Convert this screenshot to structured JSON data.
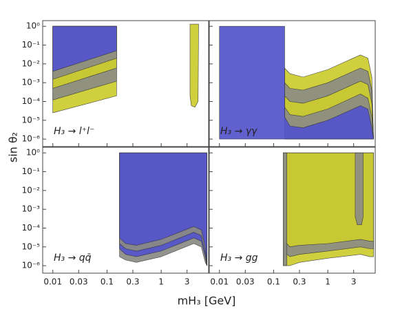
{
  "chart_data": {
    "type": "contour",
    "xlabel": "mH₃ [GeV]",
    "ylabel": "sin θ₂",
    "log_x": true,
    "log_y": true,
    "xlim": [
      0.0065,
      7.5
    ],
    "ylim": [
      4e-07,
      2
    ],
    "xticks": [
      0.01,
      0.03,
      0.1,
      0.3,
      1,
      3
    ],
    "yticks": [
      {
        "value": 1,
        "label": "10⁰"
      },
      {
        "value": 0.1,
        "label": "10⁻¹"
      },
      {
        "value": 0.01,
        "label": "10⁻²"
      },
      {
        "value": 0.001,
        "label": "10⁻³"
      },
      {
        "value": 0.0001,
        "label": "10⁻⁴"
      },
      {
        "value": 1e-05,
        "label": "10⁻⁵"
      },
      {
        "value": 1e-06,
        "label": "10⁻⁶"
      }
    ],
    "panels": [
      {
        "label": "H₃ → l⁺l⁻",
        "regions": [
          {
            "color": "#cdcd2e",
            "x": [
              0.01,
              0.15,
              0.15,
              0.01
            ],
            "values": [
              2.5e-05,
              0.0002,
              1,
              1
            ]
          },
          {
            "color": "#8c8c86",
            "x": [
              0.01,
              0.15,
              0.15,
              0.01
            ],
            "values": [
              0.00012,
              0.0012,
              1,
              1
            ]
          },
          {
            "color": "#cdcd2e",
            "x": [
              0.01,
              0.15,
              0.15,
              0.01
            ],
            "values": [
              0.0005,
              0.006,
              1,
              1
            ]
          },
          {
            "color": "#8c8c86",
            "x": [
              0.01,
              0.15,
              0.15,
              0.01
            ],
            "values": [
              0.0015,
              0.02,
              1,
              1
            ]
          },
          {
            "color": "#5353cc",
            "x": [
              0.01,
              0.15,
              0.15,
              0.01
            ],
            "values": [
              0.004,
              0.05,
              1,
              1
            ]
          },
          {
            "color": "#cdcd2e",
            "x": [
              3.4,
              3.4,
              3.6,
              4.2,
              4.8,
              4.9
            ],
            "values": [
              1.3,
              0.0002,
              6e-05,
              5e-05,
              0.0001,
              1.3
            ]
          }
        ]
      },
      {
        "label": "H₃ → γγ",
        "regions": [
          {
            "color": "#cdcd2e",
            "x": [
              0.16,
              0.16,
              0.2,
              0.35,
              1,
              4,
              5.5,
              6.5,
              7
            ],
            "values": [
              1e-06,
              0.006,
              0.003,
              0.002,
              0.005,
              0.03,
              0.02,
              0.002,
              1e-06
            ]
          },
          {
            "color": "#8c8c86",
            "x": [
              0.16,
              0.16,
              0.2,
              0.35,
              1,
              4,
              5.5,
              6.5,
              7
            ],
            "values": [
              1e-06,
              0.001,
              0.0005,
              0.0004,
              0.001,
              0.006,
              0.004,
              0.0004,
              1e-06
            ]
          },
          {
            "color": "#cdcd2e",
            "x": [
              0.16,
              0.16,
              0.2,
              0.35,
              1,
              4,
              5.5,
              6.5,
              7
            ],
            "values": [
              1e-06,
              0.0002,
              0.0001,
              8e-05,
              0.0002,
              0.0012,
              0.0008,
              8e-05,
              1e-06
            ]
          },
          {
            "color": "#8c8c86",
            "x": [
              0.16,
              0.16,
              0.2,
              0.35,
              1,
              4,
              5.5,
              6.5,
              7
            ],
            "values": [
              1e-06,
              5e-05,
              2e-05,
              1.6e-05,
              4e-05,
              0.00025,
              0.00015,
              1.5e-05,
              1e-06
            ]
          },
          {
            "color": "#5353cc",
            "x": [
              0.01,
              0.01,
              0.16,
              0.16,
              0.2,
              0.35,
              1,
              4,
              5.5,
              6.5,
              7
            ],
            "values": [
              1e-06,
              1,
              1,
              1.5e-05,
              5e-06,
              4e-06,
              1e-05,
              6e-05,
              4e-05,
              4e-06,
              1e-06
            ]
          }
        ]
      },
      {
        "label": "H₃ → qq̄",
        "regions": [
          {
            "color": "#8c8c86",
            "x": [
              0.17,
              0.22,
              0.35,
              1,
              4,
              5.5,
              6.5,
              7,
              7,
              0.17
            ],
            "values": [
              3e-06,
              2e-06,
              1.5e-06,
              3e-06,
              1.5e-05,
              1e-05,
              1.5e-06,
              1e-06,
              1,
              1
            ]
          },
          {
            "color": "#5353cc",
            "x": [
              0.17,
              0.22,
              0.35,
              1,
              4,
              5.5,
              6.5,
              7,
              7,
              0.17
            ],
            "values": [
              8e-06,
              4e-06,
              3e-06,
              6e-06,
              3e-05,
              2e-05,
              3e-06,
              1e-06,
              1,
              1
            ]
          },
          {
            "color": "#8c8c86",
            "x": [
              0.17,
              0.22,
              0.35,
              1,
              4,
              5.5,
              6.5,
              7,
              7,
              0.17
            ],
            "values": [
              1.5e-05,
              8e-06,
              6e-06,
              1.2e-05,
              6e-05,
              4e-05,
              5e-06,
              1e-06,
              1,
              1
            ]
          },
          {
            "color": "#5353cc",
            "x": [
              0.17,
              0.22,
              0.35,
              1,
              4,
              5.5,
              6.5,
              7,
              7,
              0.17
            ],
            "values": [
              3e-05,
              1.5e-05,
              1.2e-05,
              2.5e-05,
              0.00012,
              8e-05,
              1e-05,
              1e-06,
              1,
              1
            ]
          }
        ]
      },
      {
        "label": "H₃ → gg",
        "regions": [
          {
            "color": "#cdcd2e",
            "x": [
              0.15,
              0.16,
              0.2,
              0.3,
              1,
              4,
              6,
              7,
              7,
              0.15
            ],
            "values": [
              1e-06,
              1e-06,
              1e-06,
              1.5e-06,
              2.5e-06,
              4e-06,
              3e-06,
              3e-06,
              1,
              1
            ]
          },
          {
            "color": "#8c8c86",
            "x": [
              0.15,
              0.16,
              0.2,
              0.3,
              1,
              4,
              6,
              7,
              7,
              0.15
            ],
            "values": [
              1e-06,
              5e-06,
              3e-06,
              4e-06,
              6e-06,
              1e-05,
              8e-06,
              8e-06,
              1,
              1
            ]
          },
          {
            "color": "#cdcd2e",
            "x": [
              0.15,
              0.16,
              0.2,
              0.3,
              1,
              4,
              6,
              7,
              7,
              0.15
            ],
            "values": [
              1e-06,
              2e-05,
              1e-05,
              1.2e-05,
              1.5e-05,
              2.5e-05,
              2e-05,
              2e-05,
              1,
              1
            ]
          },
          {
            "color": "#8c8c86",
            "x": [
              0.15,
              0.15,
              0.175,
              0.175
            ],
            "values": [
              1e-06,
              1,
              1,
              1e-06
            ]
          },
          {
            "color": "#8c8c86",
            "x": [
              3.2,
              3.2,
              3.5,
              4.2,
              4.5,
              4.5
            ],
            "values": [
              1,
              0.0004,
              0.00015,
              0.00015,
              0.0004,
              1
            ]
          }
        ]
      }
    ]
  }
}
